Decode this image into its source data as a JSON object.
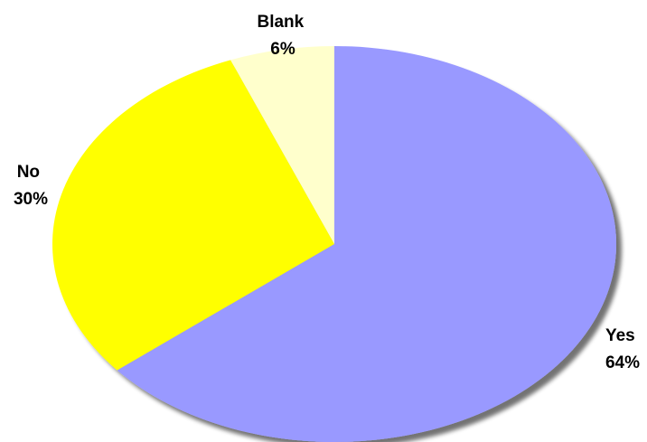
{
  "chart_data": {
    "type": "pie",
    "title": "",
    "categories": [
      "Yes",
      "No",
      "Blank"
    ],
    "values": [
      64,
      30,
      6
    ],
    "value_labels": [
      "64%",
      "30%",
      "6%"
    ],
    "colors": [
      "#9999FF",
      "#FFFF00",
      "#FFFFCC"
    ],
    "start_angle": "12 o'clock",
    "direction": "clockwise",
    "legend": "none"
  }
}
